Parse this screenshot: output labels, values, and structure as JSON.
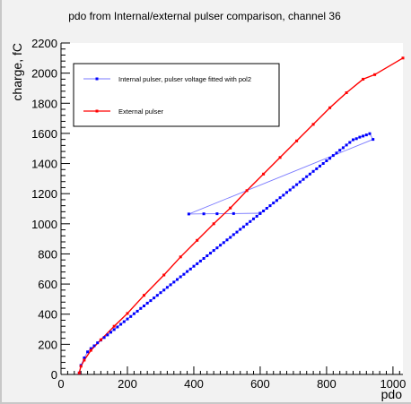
{
  "chart_data": {
    "type": "scatter",
    "title": "pdo from Internal/external pulser comparison, channel 36",
    "xlabel": "pdo",
    "ylabel": "charge, fC",
    "xlim": [
      0,
      1030
    ],
    "ylim": [
      0,
      2200
    ],
    "xticks": [
      0,
      200,
      400,
      600,
      800,
      1000
    ],
    "yticks": [
      0,
      200,
      400,
      600,
      800,
      1000,
      1200,
      1400,
      1600,
      1800,
      2000,
      2200
    ],
    "grid": false,
    "legend_position": "top-left",
    "colors": {
      "internal": "#0000ff",
      "external": "#ff0000",
      "internal_line": "#7a7aff"
    },
    "series": [
      {
        "name": "Internal pulser, pulser voltage fitted with pol2",
        "style": "markers-and-thin-line",
        "x": [
          55,
          60,
          70,
          80,
          90,
          100,
          110,
          120,
          130,
          140,
          150,
          160,
          170,
          180,
          190,
          200,
          210,
          220,
          230,
          240,
          250,
          260,
          270,
          280,
          290,
          300,
          310,
          320,
          330,
          340,
          350,
          360,
          370,
          380,
          390,
          400,
          410,
          420,
          430,
          440,
          450,
          460,
          470,
          480,
          490,
          500,
          510,
          520,
          530,
          540,
          550,
          560,
          570,
          580,
          590,
          600,
          610,
          620,
          630,
          640,
          650,
          660,
          670,
          680,
          690,
          700,
          710,
          720,
          730,
          740,
          750,
          760,
          770,
          780,
          790,
          800,
          810,
          820,
          830,
          840,
          850,
          860,
          870,
          880,
          890,
          900,
          910,
          920,
          930,
          940,
          385,
          430,
          470,
          520,
          600
        ],
        "y": [
          10,
          60,
          110,
          150,
          172,
          190,
          210,
          228,
          245,
          262,
          280,
          298,
          315,
          333,
          350,
          368,
          385,
          403,
          420,
          438,
          455,
          473,
          490,
          508,
          525,
          543,
          560,
          578,
          595,
          613,
          630,
          648,
          665,
          683,
          700,
          718,
          735,
          753,
          770,
          788,
          805,
          823,
          840,
          858,
          875,
          893,
          910,
          928,
          945,
          963,
          980,
          998,
          1015,
          1033,
          1050,
          1068,
          1085,
          1103,
          1120,
          1138,
          1155,
          1173,
          1190,
          1208,
          1225,
          1243,
          1260,
          1278,
          1295,
          1313,
          1330,
          1348,
          1365,
          1383,
          1400,
          1418,
          1435,
          1453,
          1470,
          1488,
          1505,
          1523,
          1540,
          1558,
          1565,
          1575,
          1582,
          1590,
          1598,
          1560,
          1065,
          1066,
          1067,
          1068,
          1070
        ]
      },
      {
        "name": "External pulser",
        "style": "markers-and-line",
        "x": [
          55,
          60,
          70,
          90,
          120,
          160,
          200,
          250,
          310,
          360,
          410,
          460,
          510,
          560,
          610,
          660,
          710,
          760,
          810,
          860,
          910,
          945,
          1030
        ],
        "y": [
          10,
          55,
          95,
          160,
          230,
          320,
          405,
          525,
          660,
          780,
          890,
          1000,
          1105,
          1220,
          1330,
          1440,
          1550,
          1660,
          1770,
          1870,
          1960,
          1990,
          2100
        ]
      }
    ]
  }
}
